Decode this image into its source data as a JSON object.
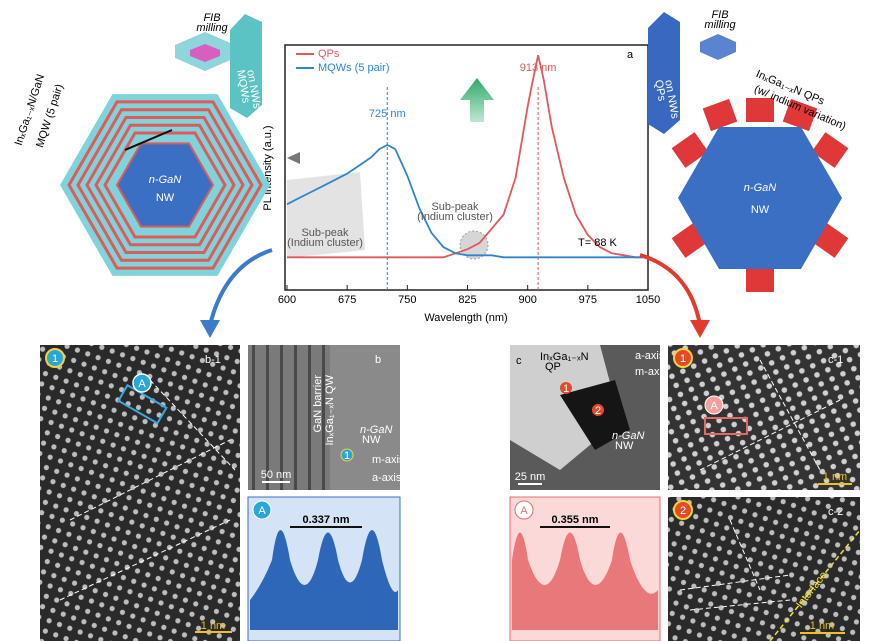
{
  "chart_data": {
    "type": "line",
    "x_label": "Wavelength (nm)",
    "y_label": "PL intensity (a.u.)",
    "panel": "a",
    "x": [
      600,
      615,
      630,
      645,
      660,
      675,
      690,
      705,
      715,
      725,
      735,
      750,
      765,
      780,
      795,
      810,
      825,
      840,
      855,
      870,
      885,
      900,
      905,
      913,
      920,
      930,
      945,
      960,
      975,
      990,
      1005,
      1020,
      1035,
      1050
    ],
    "series": [
      {
        "name": "QPs",
        "color": "#e0585e",
        "values": [
          1,
          1,
          1,
          1,
          1,
          1,
          1,
          1,
          1,
          1,
          1,
          1,
          1,
          1,
          1,
          3,
          5,
          8,
          15,
          22,
          40,
          75,
          85,
          100,
          88,
          65,
          40,
          22,
          12,
          6,
          3,
          2,
          1,
          1
        ]
      },
      {
        "name": "MQWs (5 pair)",
        "color": "#2f86cf",
        "values": [
          27,
          30,
          33,
          36,
          39,
          42,
          46,
          50,
          54,
          56,
          54,
          41,
          25,
          13,
          6,
          3,
          2,
          2,
          2,
          1,
          1,
          1,
          1,
          1,
          1,
          1,
          1,
          1,
          1,
          1,
          1,
          1,
          1,
          1
        ]
      }
    ],
    "xlim": [
      600,
      1050
    ],
    "xticks": [
      600,
      675,
      750,
      825,
      900,
      975,
      1050
    ],
    "ylim": [
      -15,
      105
    ],
    "peak_labels": [
      {
        "value": 725,
        "label": "725 nm"
      },
      {
        "value": 913,
        "label": "913 nm"
      }
    ],
    "annotations": {
      "sub_peak_left": [
        "Sub-peak",
        "(Indium cluster)"
      ],
      "sub_peak_right": [
        "Sub-peak",
        "(Indium cluster)"
      ],
      "temperature": "T= 88 K"
    }
  },
  "schematics": {
    "mqw": {
      "label": [
        "InₓGa₁₋ₓN/GaN",
        "MQW (5 pair)"
      ],
      "core": [
        "n-GaN",
        "NW"
      ],
      "fib": [
        "FIB",
        "milling"
      ],
      "rod": [
        "MQWs",
        "on NWs"
      ]
    },
    "qp": {
      "label": [
        "InₓGa₁₋ₓN QPs",
        "(w/ indium variation)"
      ],
      "core": [
        "n-GaN",
        "NW"
      ],
      "fib": [
        "FIB",
        "milling"
      ],
      "rod": [
        "QPs",
        "on NWs"
      ]
    }
  },
  "panels": {
    "b1": {
      "label": "b-1",
      "marker": "1",
      "region": "A",
      "scale": "1 nm"
    },
    "b": {
      "label": "b",
      "barrier": "GaN barrier",
      "qw": "InₓGa₁₋ₓN QW",
      "core": [
        "n-GaN",
        "NW"
      ],
      "marker": "1",
      "scale": "50 nm",
      "axes": [
        "m-axis",
        "a-axis"
      ]
    },
    "b_profile": {
      "region": "A",
      "spacing": "0.337 nm"
    },
    "c": {
      "label": "c",
      "qp": [
        "InₓGa₁₋ₓN",
        "QP"
      ],
      "markers": [
        "1",
        "2"
      ],
      "core": [
        "n-GaN",
        "NW"
      ],
      "scale": "25 nm",
      "axes": [
        "a-axis",
        "m-axis"
      ]
    },
    "c_profile": {
      "region": "A",
      "spacing": "0.355 nm"
    },
    "c1": {
      "label": "c-1",
      "marker": "1",
      "region": "A",
      "scale": "1 nm"
    },
    "c2": {
      "label": "c-2",
      "marker": "2",
      "interface": "Interface",
      "scale": "1 nm"
    }
  }
}
